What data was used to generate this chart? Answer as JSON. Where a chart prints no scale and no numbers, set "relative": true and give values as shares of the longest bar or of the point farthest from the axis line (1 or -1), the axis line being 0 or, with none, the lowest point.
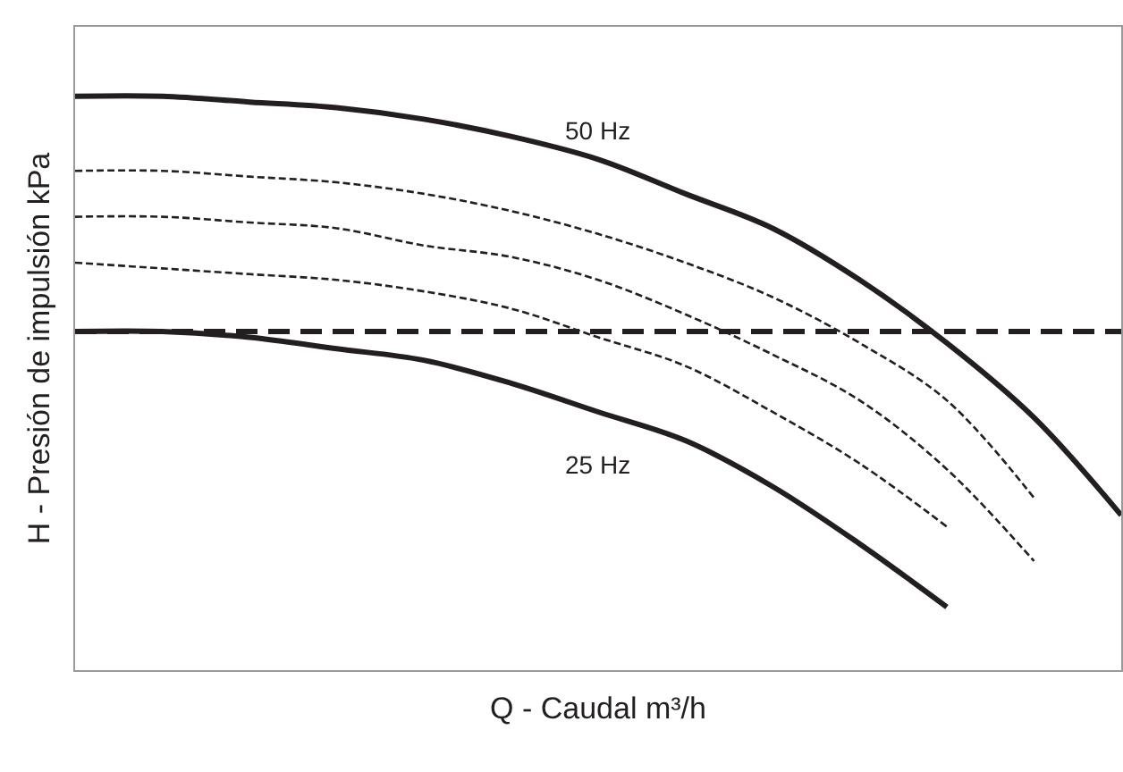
{
  "chart_data": {
    "type": "line",
    "relative": true,
    "xlabel": "Q - Caudal m³/h",
    "ylabel": "H - Presión de impulsión kPa",
    "categories": [
      null,
      null,
      null,
      null,
      null,
      null,
      null,
      null,
      null,
      null,
      null,
      null,
      null
    ],
    "legend": false,
    "marker": "none",
    "series": [
      {
        "name": "50 Hz",
        "color": "#231f20",
        "line_style": "solid",
        "values": [
          1.0,
          1.0,
          0.99,
          0.98,
          0.96,
          0.93,
          0.89,
          0.83,
          0.77,
          0.68,
          0.57,
          0.44,
          0.27
        ]
      },
      {
        "color": "#231f20",
        "line_style": "dashed",
        "values": [
          0.87,
          0.87,
          0.86,
          0.85,
          0.83,
          0.8,
          0.76,
          0.71,
          0.65,
          0.57,
          0.47,
          0.3,
          null
        ]
      },
      {
        "color": "#231f20",
        "line_style": "dashed",
        "values": [
          0.79,
          0.79,
          0.78,
          0.77,
          0.74,
          0.72,
          0.68,
          0.62,
          0.55,
          0.47,
          0.35,
          0.19,
          null
        ]
      },
      {
        "color": "#231f20",
        "line_style": "dashed",
        "values": [
          0.71,
          0.7,
          0.69,
          0.68,
          0.66,
          0.63,
          0.58,
          0.53,
          0.45,
          0.36,
          0.25,
          null,
          null
        ]
      },
      {
        "name": "25 Hz",
        "color": "#231f20",
        "line_style": "solid",
        "values": [
          0.59,
          0.59,
          0.58,
          0.56,
          0.54,
          0.5,
          0.45,
          0.4,
          0.32,
          0.22,
          0.11,
          null,
          null
        ]
      }
    ],
    "ref_lines": [
      {
        "axis": "y",
        "value": 0.59,
        "color": "#231f20",
        "line_style": "dashed"
      }
    ]
  }
}
